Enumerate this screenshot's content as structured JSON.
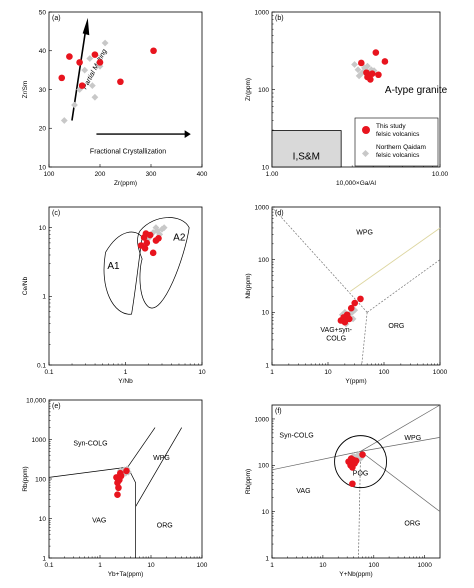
{
  "colors": {
    "this_study": "#e8141e",
    "qaidam": "#c8c8c8",
    "box_fill": "#d9d9d9",
    "wpg_line": "#ddd6a0"
  },
  "chart_data": [
    {
      "panel": "(a)",
      "type": "scatter",
      "xlabel": "Zr(ppm)",
      "ylabel": "Zr/Sm",
      "xlim": [
        100,
        400
      ],
      "ylim": [
        10,
        50
      ],
      "xticks": [
        "100",
        "200",
        "300",
        "400"
      ],
      "yticks": [
        "10",
        "20",
        "30",
        "40",
        "50"
      ],
      "annotations": [
        "Partial Melting",
        "Fractional Crystallization"
      ],
      "series": [
        {
          "name": "This study felsic volcanics",
          "points": [
            [
              125,
              33
            ],
            [
              140,
              38.5
            ],
            [
              160,
              37
            ],
            [
              165,
              31
            ],
            [
              190,
              39
            ],
            [
              200,
              37
            ],
            [
              240,
              32
            ],
            [
              305,
              40
            ]
          ]
        },
        {
          "name": "Northern Qaidam felsic volcanics",
          "points": [
            [
              130,
              22
            ],
            [
              150,
              26
            ],
            [
              160,
              30
            ],
            [
              170,
              35
            ],
            [
              180,
              38
            ],
            [
              185,
              31
            ],
            [
              190,
              28
            ],
            [
              200,
              36
            ],
            [
              210,
              42
            ]
          ]
        }
      ]
    },
    {
      "panel": "(b)",
      "type": "scatter",
      "log_x": true,
      "log_y": true,
      "xlabel": "10,000×Ga/Al",
      "ylabel": "Zr(ppm)",
      "xlim": [
        1,
        10
      ],
      "ylim": [
        10,
        1000
      ],
      "xticks": [
        "1.00",
        "10.00"
      ],
      "yticks": [
        "10",
        "100",
        "1000"
      ],
      "field_labels": [
        "A-type granite",
        "I,S&M"
      ],
      "legend": [
        "This study",
        "felsic volcanics",
        "Northern Qaidam",
        "felsic volcanics"
      ],
      "series": [
        {
          "name": "This study felsic volcanics",
          "points": [
            [
              3.4,
              220
            ],
            [
              3.65,
              165
            ],
            [
              3.75,
              155
            ],
            [
              3.85,
              135
            ],
            [
              3.7,
              145
            ],
            [
              3.95,
              160
            ],
            [
              4.3,
              155
            ],
            [
              4.15,
              300
            ],
            [
              4.7,
              230
            ]
          ]
        },
        {
          "name": "Northern Qaidam felsic volcanics",
          "points": [
            [
              3.1,
              210
            ],
            [
              3.25,
              180
            ],
            [
              3.3,
              150
            ],
            [
              3.45,
              165
            ],
            [
              3.55,
              190
            ],
            [
              3.7,
              200
            ],
            [
              3.9,
              180
            ],
            [
              4.05,
              175
            ]
          ]
        }
      ]
    },
    {
      "panel": "(c)",
      "type": "scatter",
      "log_x": true,
      "log_y": true,
      "xlabel": "Y/Nb",
      "ylabel": "Ce/Nb",
      "xlim": [
        0.1,
        10
      ],
      "ylim": [
        0.1,
        20
      ],
      "xticks": [
        "0.1",
        "1",
        "10"
      ],
      "yticks": [
        "0.1",
        "1",
        "10"
      ],
      "field_labels": [
        "A1",
        "A2"
      ],
      "series": [
        {
          "name": "This study felsic volcanics",
          "points": [
            [
              1.6,
              5.5
            ],
            [
              1.8,
              5
            ],
            [
              1.9,
              6
            ],
            [
              1.75,
              7.2
            ],
            [
              2.1,
              7.8
            ],
            [
              1.85,
              8.2
            ],
            [
              2.3,
              4.3
            ],
            [
              2.5,
              6.5
            ],
            [
              2.7,
              7
            ]
          ]
        },
        {
          "name": "Northern Qaidam felsic volcanics",
          "points": [
            [
              2.0,
              7
            ],
            [
              2.3,
              8.5
            ],
            [
              2.6,
              9
            ],
            [
              2.8,
              8
            ],
            [
              3.0,
              9.5
            ],
            [
              3.2,
              10
            ],
            [
              2.5,
              10
            ]
          ]
        }
      ]
    },
    {
      "panel": "(d)",
      "type": "scatter",
      "log_x": true,
      "log_y": true,
      "xlabel": "Y(ppm)",
      "ylabel": "Nb(ppm)",
      "xlim": [
        1,
        1000
      ],
      "ylim": [
        1,
        1000
      ],
      "xticks": [
        "1",
        "10",
        "100",
        "1000"
      ],
      "yticks": [
        "1",
        "10",
        "100",
        "1000"
      ],
      "field_labels": [
        "WPG",
        "VAG+syn-",
        "COLG",
        "ORG"
      ],
      "series": [
        {
          "name": "This study felsic volcanics",
          "points": [
            [
              17,
              7
            ],
            [
              19,
              8
            ],
            [
              20,
              6.5
            ],
            [
              22,
              9
            ],
            [
              24,
              7.5
            ],
            [
              26,
              12
            ],
            [
              30,
              15
            ],
            [
              38,
              18
            ]
          ]
        },
        {
          "name": "Northern Qaidam felsic volcanics",
          "points": [
            [
              18,
              9
            ],
            [
              20,
              10
            ],
            [
              21,
              6
            ],
            [
              23,
              8
            ],
            [
              25,
              9.5
            ],
            [
              27,
              10
            ],
            [
              28,
              7.5
            ],
            [
              30,
              11
            ]
          ]
        }
      ]
    },
    {
      "panel": "(e)",
      "type": "scatter",
      "log_x": true,
      "log_y": true,
      "xlabel": "Yb+Ta(ppm)",
      "ylabel": "Rb(ppm)",
      "xlim": [
        0.1,
        100
      ],
      "ylim": [
        1,
        10000
      ],
      "xticks": [
        "0.1",
        "1",
        "10",
        "100"
      ],
      "yticks": [
        "1",
        "10",
        "100",
        "1000",
        "10,000"
      ],
      "field_labels": [
        "Syn-COLG",
        "WPG",
        "VAG",
        "ORG"
      ],
      "series": [
        {
          "name": "This study felsic volcanics",
          "points": [
            [
              2.1,
              110
            ],
            [
              2.2,
              80
            ],
            [
              2.3,
              60
            ],
            [
              2.4,
              95
            ],
            [
              2.5,
              140
            ],
            [
              2.6,
              120
            ],
            [
              2.2,
              40
            ],
            [
              3.3,
              160
            ]
          ]
        },
        {
          "name": "Northern Qaidam felsic volcanics",
          "points": [
            [
              2.5,
              160
            ],
            [
              2.8,
              150
            ],
            [
              3.0,
              170
            ],
            [
              3.2,
              140
            ],
            [
              3.4,
              180
            ],
            [
              3.6,
              150
            ]
          ]
        }
      ]
    },
    {
      "panel": "(f)",
      "type": "scatter",
      "log_x": true,
      "log_y": true,
      "xlabel": "Y+Nb(ppm)",
      "ylabel": "Rb(ppm)",
      "xlim": [
        1,
        2000
      ],
      "ylim": [
        1,
        2000
      ],
      "xticks": [
        "1",
        "10",
        "100",
        "1000"
      ],
      "yticks": [
        "1",
        "10",
        "100",
        "1000"
      ],
      "field_labels": [
        "Syn-COLG",
        "WPG",
        "POG",
        "VAG",
        "ORG"
      ],
      "series": [
        {
          "name": "This study felsic volcanics",
          "points": [
            [
              32,
              120
            ],
            [
              35,
              100
            ],
            [
              36,
              140
            ],
            [
              38,
              90
            ],
            [
              40,
              130
            ],
            [
              42,
              110
            ],
            [
              45,
              125
            ],
            [
              38,
              40
            ],
            [
              60,
              170
            ]
          ]
        },
        {
          "name": "Northern Qaidam felsic volcanics",
          "points": [
            [
              40,
              160
            ],
            [
              45,
              150
            ],
            [
              50,
              170
            ],
            [
              55,
              140
            ],
            [
              60,
              160
            ],
            [
              48,
              130
            ]
          ]
        }
      ]
    }
  ]
}
